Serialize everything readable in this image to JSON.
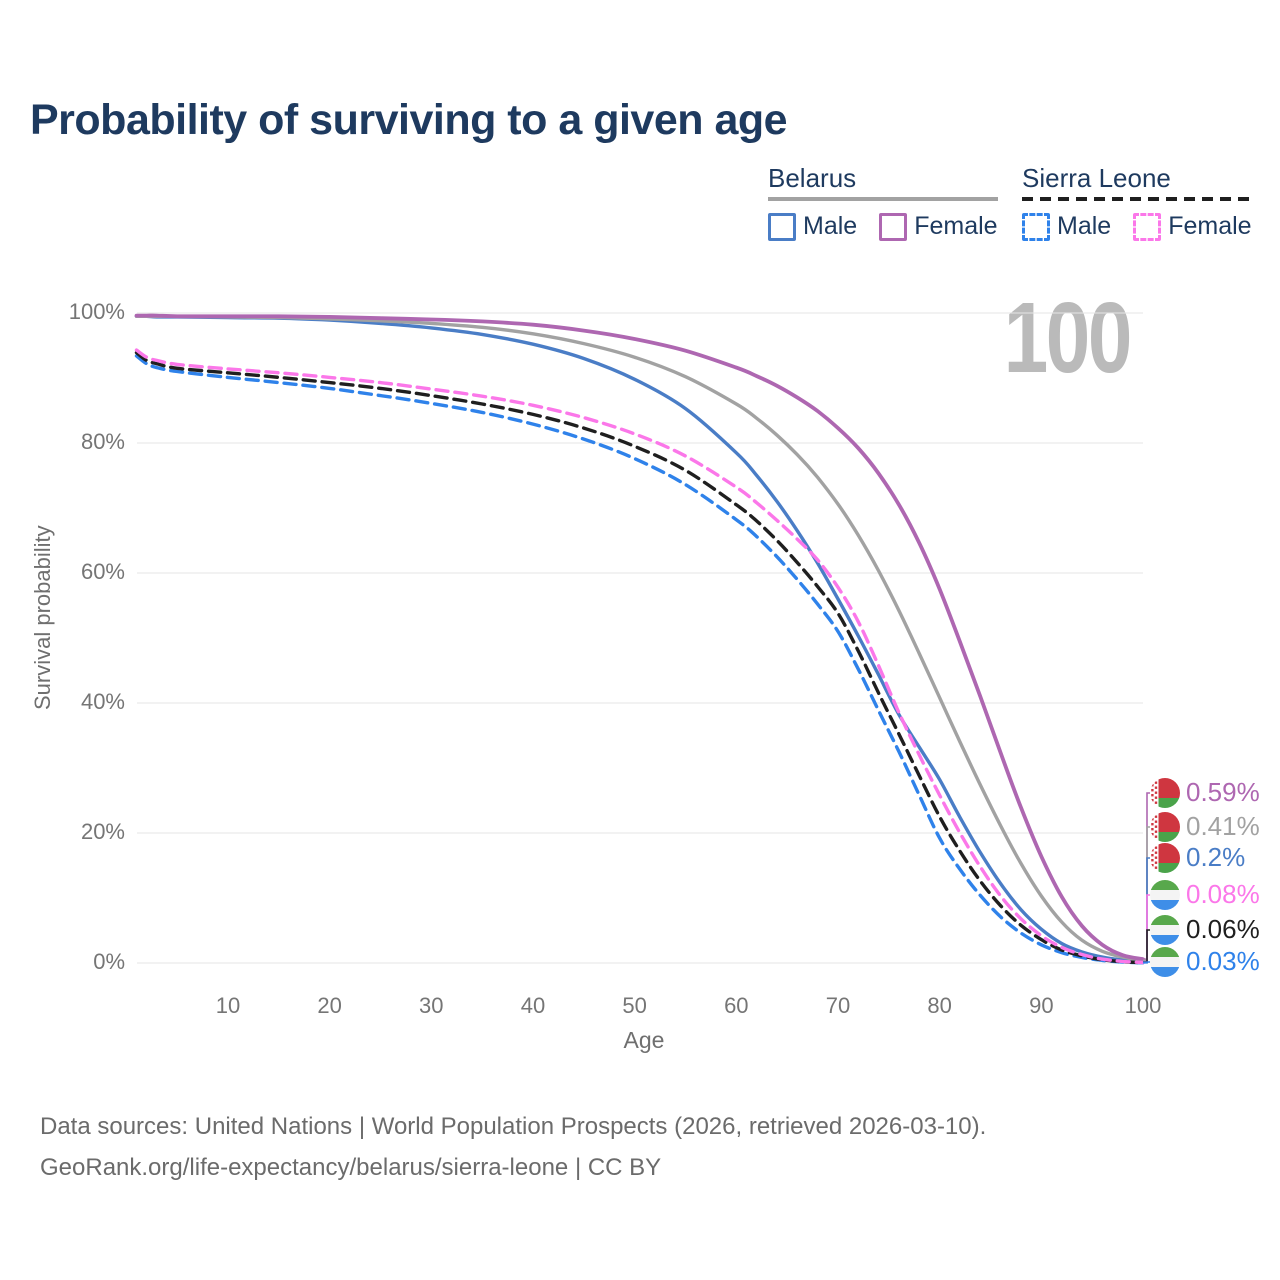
{
  "watermark": "100",
  "legend": {
    "groups": [
      {
        "label": "Belarus",
        "line_style": "solid",
        "line_color": "#a2a2a2",
        "items": [
          {
            "label": "Male",
            "color": "#4a7dc6"
          },
          {
            "label": "Female",
            "color": "#ae67b1"
          }
        ]
      },
      {
        "label": "Sierra Leone",
        "line_style": "dashed",
        "line_color": "#1f1f1f",
        "items": [
          {
            "label": "Male",
            "color": "#2f82ea"
          },
          {
            "label": "Female",
            "color": "#fb77e9"
          }
        ]
      }
    ]
  },
  "chart_data": {
    "type": "line",
    "title": "Probability of surviving to a given age",
    "xlabel": "Age",
    "ylabel": "Survival probability",
    "xlim": [
      1,
      100
    ],
    "ylim": [
      0,
      100
    ],
    "x_ticks": [
      10,
      20,
      30,
      40,
      50,
      60,
      70,
      80,
      90,
      100
    ],
    "y_ticks": [
      0,
      20,
      40,
      60,
      80,
      100
    ],
    "y_tick_suffix": "%",
    "grid": "horizontal",
    "grid_color": "#e6e6e6",
    "x": [
      1,
      2,
      3,
      5,
      10,
      15,
      20,
      25,
      30,
      35,
      40,
      45,
      50,
      55,
      60,
      62,
      64,
      66,
      68,
      70,
      72,
      74,
      76,
      78,
      80,
      82,
      84,
      86,
      88,
      90,
      92,
      94,
      96,
      98,
      100
    ],
    "series": [
      {
        "name": "Belarus Female",
        "country": "Belarus",
        "sex": "Female",
        "color": "#ae67b1",
        "dash": false,
        "width": 3.8,
        "end_label": "0.59%",
        "flag": "belarus",
        "values": [
          99.6,
          99.6,
          99.6,
          99.5,
          99.5,
          99.5,
          99.4,
          99.2,
          99.0,
          98.7,
          98.2,
          97.3,
          96.0,
          94.2,
          91.6,
          90.3,
          88.8,
          87.0,
          84.9,
          82.3,
          79.2,
          75.3,
          70.5,
          64.6,
          57.5,
          49.4,
          41.0,
          32.3,
          23.9,
          16.4,
          10.2,
          5.7,
          2.8,
          1.2,
          0.59
        ]
      },
      {
        "name": "Belarus",
        "country": "Belarus",
        "sex": "All",
        "color": "#a2a2a2",
        "dash": false,
        "width": 3.4,
        "end_label": "0.41%",
        "flag": "belarus",
        "values": [
          99.5,
          99.5,
          99.5,
          99.5,
          99.4,
          99.3,
          99.1,
          98.8,
          98.4,
          97.8,
          96.8,
          95.3,
          93.2,
          90.2,
          86.0,
          83.8,
          81.2,
          78.2,
          74.7,
          70.6,
          65.8,
          60.3,
          54.2,
          47.6,
          40.8,
          34.0,
          27.4,
          21.1,
          15.3,
          10.3,
          6.3,
          3.5,
          1.8,
          0.9,
          0.41
        ]
      },
      {
        "name": "Belarus Male",
        "country": "Belarus",
        "sex": "Male",
        "color": "#4a7dc6",
        "dash": false,
        "width": 3.4,
        "end_label": "0.2%",
        "flag": "belarus",
        "values": [
          99.5,
          99.5,
          99.4,
          99.4,
          99.3,
          99.2,
          98.9,
          98.4,
          97.7,
          96.7,
          95.2,
          93.0,
          89.8,
          85.3,
          78.5,
          75.0,
          71.0,
          66.5,
          61.5,
          56.0,
          50.3,
          44.3,
          38.2,
          33.2,
          28.2,
          22.4,
          17.0,
          12.2,
          8.2,
          5.2,
          3.0,
          1.7,
          0.9,
          0.45,
          0.2
        ]
      },
      {
        "name": "Sierra Leone Female",
        "country": "Sierra Leone",
        "sex": "Female",
        "color": "#fb77e9",
        "dash": true,
        "width": 3.4,
        "end_label": "0.08%",
        "flag": "sierra-leone",
        "values": [
          94.3,
          93.2,
          92.7,
          92.1,
          91.4,
          90.8,
          90.1,
          89.3,
          88.3,
          87.2,
          85.8,
          83.9,
          81.4,
          78.0,
          73.2,
          70.8,
          68.1,
          65.2,
          62.0,
          57.8,
          52.5,
          45.7,
          38.5,
          32.0,
          25.8,
          20.0,
          14.8,
          10.3,
          6.8,
          4.2,
          2.4,
          1.3,
          0.6,
          0.25,
          0.08
        ]
      },
      {
        "name": "Sierra Leone",
        "country": "Sierra Leone",
        "sex": "All",
        "color": "#1f1f1f",
        "dash": true,
        "width": 3.4,
        "end_label": "0.06%",
        "flag": "sierra-leone",
        "values": [
          93.9,
          92.7,
          92.2,
          91.5,
          90.8,
          90.1,
          89.3,
          88.4,
          87.3,
          86.0,
          84.4,
          82.3,
          79.5,
          75.8,
          70.5,
          68.0,
          65.0,
          61.6,
          57.9,
          53.8,
          48.0,
          41.5,
          35.2,
          28.8,
          22.5,
          17.2,
          12.6,
          8.8,
          5.8,
          3.6,
          2.0,
          1.1,
          0.5,
          0.2,
          0.06
        ]
      },
      {
        "name": "Sierra Leone Male",
        "country": "Sierra Leone",
        "sex": "Male",
        "color": "#2f82ea",
        "dash": true,
        "width": 3.4,
        "end_label": "0.03%",
        "flag": "sierra-leone",
        "values": [
          93.4,
          92.2,
          91.6,
          91.0,
          90.1,
          89.3,
          88.4,
          87.3,
          86.1,
          84.7,
          82.9,
          80.6,
          77.6,
          73.6,
          68.2,
          65.6,
          62.5,
          59.0,
          55.2,
          51.0,
          45.2,
          38.8,
          32.5,
          25.8,
          19.2,
          14.4,
          10.4,
          7.1,
          4.6,
          2.8,
          1.6,
          0.85,
          0.4,
          0.15,
          0.03
        ]
      }
    ],
    "legend_position": "top-right"
  },
  "flag_colors": {
    "belarus": {
      "red": "#cf3640",
      "green": "#4aa34a",
      "white": "#ffffff"
    },
    "sierra_leone": {
      "green": "#58a84c",
      "white": "#f4f4f4",
      "blue": "#3e8ee8"
    }
  },
  "footer": {
    "line1": "Data sources: United Nations | World Population Prospects (2026, retrieved 2026-03-10).",
    "line2": "GeoRank.org/life-expectancy/belarus/sierra-leone | CC BY"
  }
}
